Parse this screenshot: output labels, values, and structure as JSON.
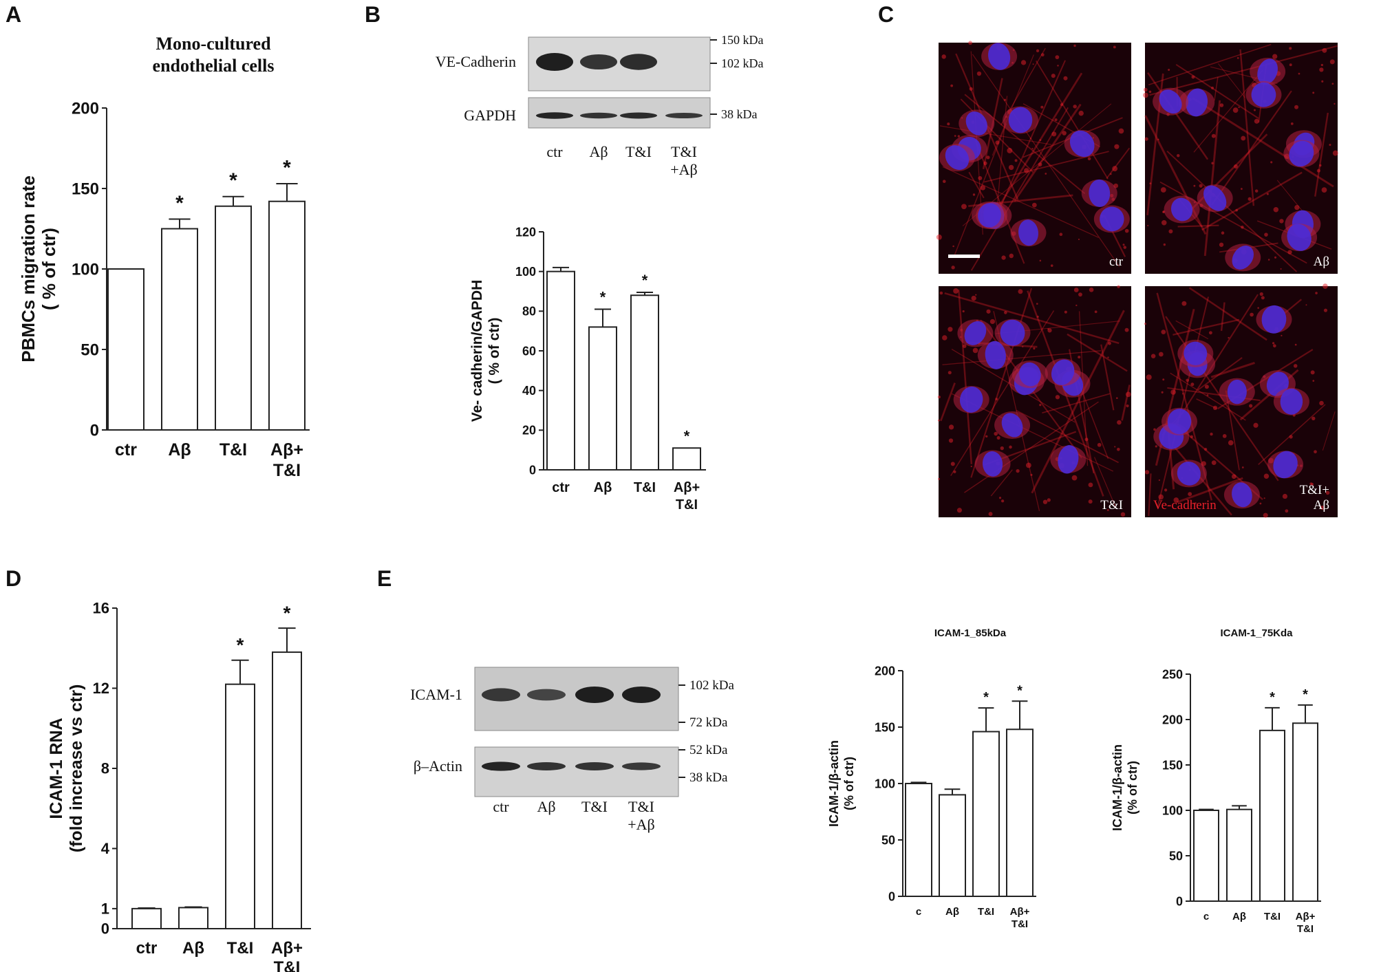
{
  "panel_letters": {
    "a": "A",
    "b": "B",
    "c": "C",
    "d": "D",
    "e": "E"
  },
  "colors": {
    "axis": "#222222",
    "bar_fill": "#ffffff",
    "micro_bg": "#1a0208",
    "ve_cadherin_red": "#e8202a",
    "dapi_blue": "#4a2bd6"
  },
  "western_b": {
    "rows": [
      {
        "label": "VE-Cadherin",
        "markers": [
          "150 kDa",
          "102 kDa"
        ]
      },
      {
        "label": "GAPDH",
        "markers": [
          "38 kDa"
        ]
      }
    ],
    "lanes": [
      "ctr",
      "Aβ",
      "T&I",
      "T&I\n+Aβ"
    ]
  },
  "western_e": {
    "rows": [
      {
        "label": "ICAM-1",
        "markers": [
          "102 kDa",
          "72 kDa"
        ]
      },
      {
        "label": "β–Actin",
        "markers": [
          "52 kDa",
          "38 kDa"
        ]
      }
    ],
    "lanes": [
      "ctr",
      "Aβ",
      "T&I",
      "T&I\n+Aβ"
    ]
  },
  "micrographs": {
    "labels": [
      "ctr",
      "Aβ",
      "T&I",
      "T&I+\nAβ"
    ],
    "stain_label": "Ve-cadherin"
  },
  "chart_data": [
    {
      "id": "A",
      "type": "bar",
      "title": "Mono-cultured\nendothelial cells",
      "categories": [
        "ctr",
        "Aβ",
        "T&I",
        "Aβ+\nT&I"
      ],
      "values": [
        100,
        125,
        139,
        142
      ],
      "errors": [
        0,
        6,
        6,
        11
      ],
      "significant": [
        false,
        true,
        true,
        true
      ],
      "ylabel": "PBMCs migration rate\n( % of ctr)",
      "ylim": [
        0,
        200
      ],
      "yticks": [
        0,
        50,
        100,
        150,
        200
      ]
    },
    {
      "id": "B",
      "type": "bar",
      "title": "",
      "categories": [
        "ctr",
        "Aβ",
        "T&I",
        "Aβ+\nT&I"
      ],
      "values": [
        100,
        72,
        88,
        11
      ],
      "errors": [
        2,
        9,
        1.5,
        0
      ],
      "significant": [
        false,
        true,
        true,
        true
      ],
      "ylabel": "Ve- cadherin/GAPDH\n( % of ctr)",
      "ylim": [
        0,
        120
      ],
      "yticks": [
        0,
        20,
        40,
        60,
        80,
        100,
        120
      ]
    },
    {
      "id": "D",
      "type": "bar",
      "title": "",
      "categories": [
        "ctr",
        "Aβ",
        "T&I",
        "Aβ+\nT&I"
      ],
      "values": [
        1,
        1.05,
        12.2,
        13.8
      ],
      "errors": [
        0.03,
        0.03,
        1.2,
        1.2
      ],
      "significant": [
        false,
        false,
        true,
        true
      ],
      "ylabel": "ICAM-1 RNA\n(fold increase vs ctr)",
      "ylim": [
        0,
        16
      ],
      "yticks": [
        0,
        1,
        4,
        8,
        12,
        16
      ]
    },
    {
      "id": "E1",
      "type": "bar",
      "title": "ICAM-1_85kDa",
      "categories": [
        "c",
        "Aβ",
        "T&I",
        "Aβ+\nT&I"
      ],
      "values": [
        100,
        90,
        146,
        148
      ],
      "errors": [
        1,
        5,
        21,
        25
      ],
      "significant": [
        false,
        false,
        true,
        true
      ],
      "ylabel": "ICAM-1/β-actin\n(% of ctr)",
      "ylim": [
        0,
        200
      ],
      "yticks": [
        0,
        50,
        100,
        150,
        200
      ]
    },
    {
      "id": "E2",
      "type": "bar",
      "title": "ICAM-1_75Kda",
      "categories": [
        "c",
        "Aβ",
        "T&I",
        "Aβ+\nT&I"
      ],
      "values": [
        100,
        101,
        188,
        196
      ],
      "errors": [
        1,
        4,
        25,
        20
      ],
      "significant": [
        false,
        false,
        true,
        true
      ],
      "ylabel": "ICAM-1/β-actin\n(% of ctr)",
      "ylim": [
        0,
        250
      ],
      "yticks": [
        0,
        50,
        100,
        150,
        200,
        250
      ]
    }
  ]
}
